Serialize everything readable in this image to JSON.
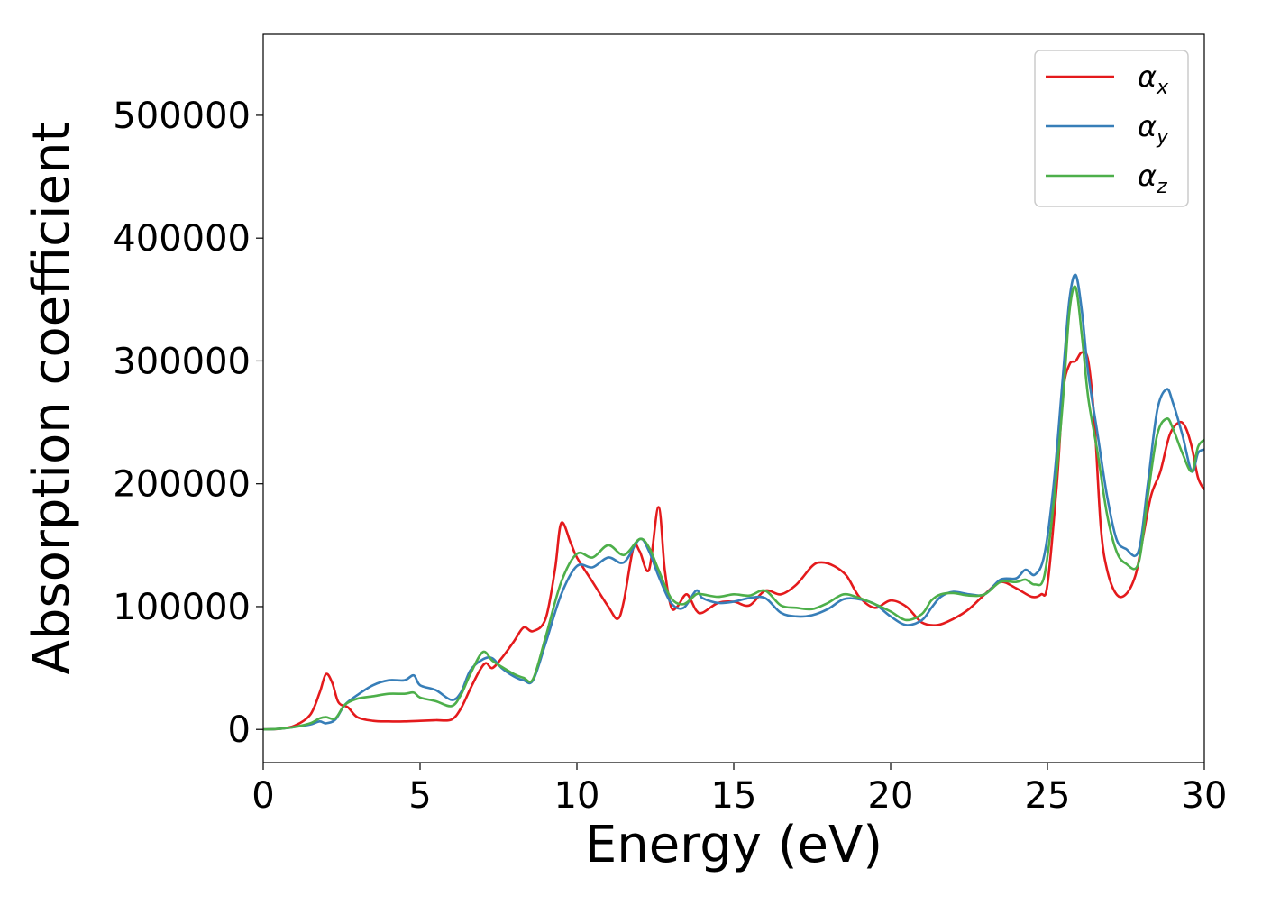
{
  "chart_data": {
    "type": "line",
    "title": "",
    "xlabel": "Energy (eV)",
    "ylabel": "Absorption coefficient",
    "xlim": [
      0,
      30
    ],
    "ylim": [
      -27000,
      566000
    ],
    "xticks": [
      0,
      5,
      10,
      15,
      20,
      25,
      30
    ],
    "xtick_labels": [
      "0",
      "5",
      "10",
      "15",
      "20",
      "25",
      "30"
    ],
    "yticks": [
      0,
      100000,
      200000,
      300000,
      400000,
      500000
    ],
    "ytick_labels": [
      "0",
      "100000",
      "200000",
      "300000",
      "400000",
      "500000"
    ],
    "grid": false,
    "legend_position": "top-right",
    "series": [
      {
        "name": "αx",
        "symbol": "α",
        "subscript": "x",
        "color": "#e41a1c",
        "x": [
          0,
          0.5,
          1.0,
          1.5,
          1.8,
          2.0,
          2.2,
          2.4,
          2.7,
          3.0,
          3.5,
          4.0,
          4.5,
          5.0,
          5.5,
          6.0,
          6.3,
          6.6,
          6.9,
          7.1,
          7.3,
          7.6,
          8.0,
          8.3,
          8.6,
          9.0,
          9.3,
          9.5,
          9.8,
          10.0,
          10.5,
          11.0,
          11.3,
          11.5,
          11.8,
          12.0,
          12.3,
          12.6,
          12.8,
          13.0,
          13.2,
          13.5,
          13.8,
          14.0,
          14.5,
          15.0,
          15.5,
          16.0,
          16.5,
          17.0,
          17.5,
          17.8,
          18.2,
          18.6,
          19.0,
          19.5,
          20.0,
          20.5,
          21.0,
          21.5,
          22.0,
          22.5,
          23.0,
          23.5,
          24.0,
          24.5,
          24.8,
          25.0,
          25.3,
          25.5,
          25.7,
          25.9,
          26.1,
          26.3,
          26.5,
          26.7,
          26.9,
          27.2,
          27.5,
          27.8,
          28.0,
          28.3,
          28.6,
          28.9,
          29.2,
          29.4,
          29.6,
          29.8,
          30.0
        ],
        "values": [
          0,
          500,
          3000,
          12000,
          30000,
          45000,
          38000,
          22000,
          18000,
          10000,
          7000,
          6500,
          6500,
          7000,
          7500,
          8000,
          17000,
          33000,
          48000,
          54000,
          50000,
          58000,
          72000,
          83000,
          80000,
          90000,
          130000,
          168000,
          152000,
          140000,
          120000,
          100000,
          90000,
          105000,
          148000,
          145000,
          130000,
          181000,
          130000,
          100000,
          100000,
          110000,
          97000,
          95000,
          103000,
          104000,
          101000,
          113000,
          110000,
          118000,
          133000,
          136000,
          133000,
          125000,
          108000,
          99000,
          105000,
          100000,
          87000,
          85000,
          90000,
          98000,
          110000,
          120000,
          115000,
          108000,
          110000,
          118000,
          200000,
          275000,
          297000,
          300000,
          307000,
          300000,
          250000,
          165000,
          130000,
          110000,
          110000,
          125000,
          150000,
          190000,
          210000,
          240000,
          250000,
          246000,
          230000,
          205000,
          195000
        ]
      },
      {
        "name": "αy",
        "symbol": "α",
        "subscript": "y",
        "color": "#377eb8",
        "x": [
          0,
          0.5,
          1.0,
          1.5,
          1.8,
          2.0,
          2.3,
          2.6,
          3.0,
          3.5,
          4.0,
          4.5,
          4.8,
          5.0,
          5.5,
          6.0,
          6.3,
          6.6,
          7.0,
          7.3,
          7.6,
          8.0,
          8.3,
          8.6,
          9.0,
          9.5,
          10.0,
          10.5,
          11.0,
          11.5,
          12.0,
          12.3,
          12.6,
          13.0,
          13.4,
          13.8,
          14.0,
          14.5,
          15.0,
          15.5,
          16.0,
          16.5,
          17.0,
          17.5,
          18.0,
          18.5,
          19.0,
          19.5,
          20.0,
          20.5,
          21.0,
          21.3,
          21.6,
          22.0,
          22.5,
          23.0,
          23.5,
          24.0,
          24.3,
          24.6,
          24.9,
          25.2,
          25.5,
          25.7,
          25.9,
          26.1,
          26.3,
          26.6,
          26.9,
          27.2,
          27.5,
          27.9,
          28.2,
          28.5,
          28.8,
          29.0,
          29.3,
          29.6,
          29.8,
          30.0
        ],
        "values": [
          0,
          500,
          2000,
          4000,
          6500,
          5000,
          8000,
          20000,
          28000,
          36000,
          40000,
          40000,
          44000,
          36000,
          32000,
          24000,
          30000,
          48000,
          57000,
          58000,
          50000,
          43000,
          40000,
          40000,
          70000,
          110000,
          133000,
          132000,
          140000,
          136000,
          155000,
          145000,
          125000,
          103000,
          99000,
          113000,
          107000,
          103000,
          104000,
          107000,
          107000,
          95000,
          92000,
          93000,
          98000,
          106000,
          106000,
          102000,
          92000,
          85000,
          89000,
          99000,
          108000,
          112000,
          110000,
          110000,
          122000,
          123000,
          130000,
          126000,
          142000,
          200000,
          290000,
          350000,
          370000,
          340000,
          290000,
          240000,
          190000,
          155000,
          147000,
          145000,
          200000,
          260000,
          277000,
          266000,
          240000,
          210000,
          225000,
          228000
        ]
      },
      {
        "name": "αz",
        "symbol": "α",
        "subscript": "z",
        "color": "#4daf4a",
        "x": [
          0,
          0.5,
          1.0,
          1.5,
          1.8,
          2.0,
          2.3,
          2.6,
          3.0,
          3.5,
          4.0,
          4.5,
          4.8,
          5.0,
          5.5,
          6.0,
          6.3,
          6.6,
          7.0,
          7.3,
          7.6,
          8.0,
          8.3,
          8.6,
          9.0,
          9.5,
          10.0,
          10.5,
          11.0,
          11.5,
          12.0,
          12.3,
          12.6,
          13.0,
          13.4,
          13.8,
          14.0,
          14.5,
          15.0,
          15.5,
          16.0,
          16.5,
          17.0,
          17.5,
          18.0,
          18.5,
          19.0,
          19.5,
          20.0,
          20.5,
          21.0,
          21.3,
          21.6,
          22.0,
          22.5,
          23.0,
          23.5,
          24.0,
          24.3,
          24.6,
          24.9,
          25.2,
          25.5,
          25.7,
          25.9,
          26.1,
          26.3,
          26.6,
          26.9,
          27.2,
          27.5,
          27.9,
          28.2,
          28.5,
          28.8,
          29.0,
          29.3,
          29.6,
          29.8,
          30.0
        ],
        "values": [
          0,
          500,
          2000,
          5000,
          9000,
          10000,
          9000,
          20000,
          25000,
          27000,
          29000,
          29000,
          30000,
          26000,
          23000,
          19000,
          28000,
          45000,
          63000,
          56000,
          51000,
          45000,
          42000,
          41000,
          75000,
          120000,
          143000,
          140000,
          150000,
          142000,
          155000,
          148000,
          130000,
          107000,
          102000,
          110000,
          110000,
          108000,
          110000,
          109000,
          113000,
          101000,
          99000,
          98000,
          103000,
          110000,
          107000,
          102000,
          96000,
          89000,
          94000,
          105000,
          110000,
          111000,
          109000,
          110000,
          120000,
          120000,
          122000,
          118000,
          125000,
          185000,
          270000,
          340000,
          360000,
          320000,
          270000,
          225000,
          175000,
          145000,
          135000,
          135000,
          190000,
          240000,
          253000,
          245000,
          225000,
          210000,
          230000,
          236000
        ]
      }
    ]
  }
}
